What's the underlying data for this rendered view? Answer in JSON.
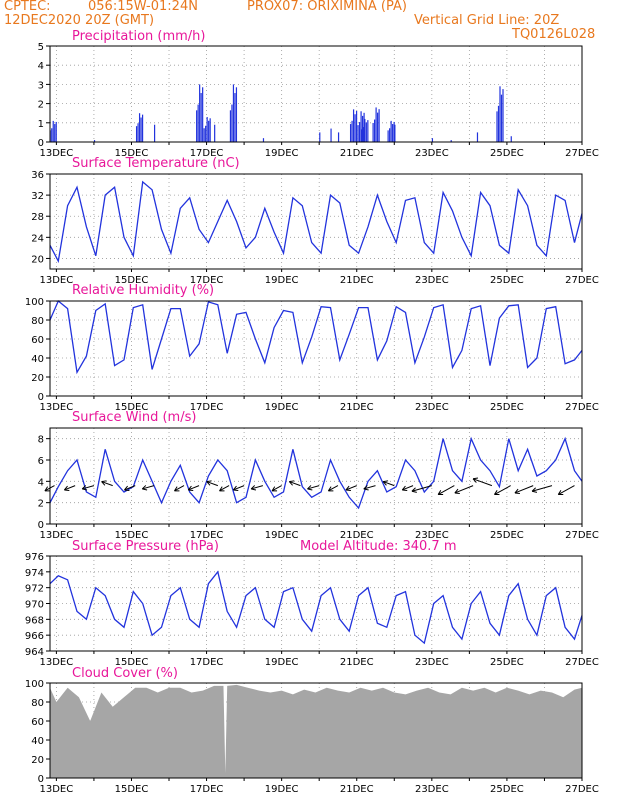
{
  "header": {
    "center": "CPTEC:",
    "coords": "056:15W-01:24N",
    "station": "PROX07: ORIXIMINA (PA)",
    "date": "12DEC2020 20Z (GMT)",
    "grid_note": "Vertical Grid Line: 20Z",
    "model": "TQ0126L028"
  },
  "colors": {
    "header": "#e8781e",
    "title": "#e8179a",
    "line": "#2233dd",
    "cloud": "#a6a6a6"
  },
  "x_ticks": [
    "13DEC",
    "15DEC",
    "17DEC",
    "19DEC",
    "21DEC",
    "23DEC",
    "25DEC",
    "27DEC"
  ],
  "chart_data": [
    {
      "type": "bar",
      "title": "Precipitation (mm/h)",
      "ylim": [
        0,
        5
      ],
      "yticks": [
        "0",
        "1",
        "2",
        "3",
        "4",
        "5"
      ],
      "x_range_days": [
        12.83,
        27.0
      ],
      "values_hourly_approx": "spikes: 12.9~1.1, 14.0~0.1, 15.2~1.5, 15.6~0.9, 16.8~3.0, 17.0~1.3, 17.2~0.9, 17.7~3.0, 18.5~0.2, 20.0~0.5, 20.3~0.7, 20.5~0.5, 20.9~1.7, 21.1~1.6, 21.2~1.2, 21.5~1.8, 21.9~1.1, 22.0~0.9, 23.0~0.2, 23.5~0.1, 24.2~0.5, 24.8~2.9, 25.1~0.3"
    },
    {
      "type": "line",
      "title": "Surface Temperature (nC)",
      "ylim": [
        18,
        36
      ],
      "yticks": [
        "20",
        "24",
        "28",
        "32",
        "36"
      ],
      "series": [
        {
          "name": "Temperature",
          "x": [
            12.83,
            13.05,
            13.3,
            13.55,
            13.8,
            14.05,
            14.3,
            14.55,
            14.8,
            15.05,
            15.3,
            15.55,
            15.8,
            16.05,
            16.3,
            16.55,
            16.8,
            17.05,
            17.3,
            17.55,
            17.8,
            18.05,
            18.3,
            18.55,
            18.8,
            19.05,
            19.3,
            19.55,
            19.8,
            20.05,
            20.3,
            20.55,
            20.8,
            21.05,
            21.3,
            21.55,
            21.8,
            22.05,
            22.3,
            22.55,
            22.8,
            23.05,
            23.3,
            23.55,
            23.8,
            24.05,
            24.3,
            24.55,
            24.8,
            25.05,
            25.3,
            25.55,
            25.8,
            26.05,
            26.3,
            26.55,
            26.8,
            27.0
          ],
          "y": [
            22.5,
            19.5,
            30,
            33.5,
            26,
            20.5,
            32,
            33.5,
            24,
            20.5,
            34.5,
            33,
            25.5,
            21,
            29.5,
            31.5,
            25.5,
            23,
            27,
            31,
            27,
            22,
            24,
            29.5,
            25,
            21,
            31.5,
            30,
            23,
            21,
            32,
            30.5,
            22.5,
            21,
            26,
            32,
            27,
            23,
            31,
            31.5,
            23,
            21,
            32.5,
            29,
            24,
            20.5,
            32.5,
            30,
            22.5,
            21,
            33,
            30,
            22.5,
            20.5,
            32,
            31,
            23,
            28.5
          ]
        }
      ]
    },
    {
      "type": "line",
      "title": "Relative Humidity (%)",
      "ylim": [
        0,
        100
      ],
      "yticks": [
        "0",
        "20",
        "40",
        "60",
        "80",
        "100"
      ],
      "series": [
        {
          "name": "Humidity",
          "x": [
            12.83,
            13.05,
            13.3,
            13.55,
            13.8,
            14.05,
            14.3,
            14.55,
            14.8,
            15.05,
            15.3,
            15.55,
            15.8,
            16.05,
            16.3,
            16.55,
            16.8,
            17.05,
            17.3,
            17.55,
            17.8,
            18.05,
            18.3,
            18.55,
            18.8,
            19.05,
            19.3,
            19.55,
            19.8,
            20.05,
            20.3,
            20.55,
            20.8,
            21.05,
            21.3,
            21.55,
            21.8,
            22.05,
            22.3,
            22.55,
            22.8,
            23.05,
            23.3,
            23.55,
            23.8,
            24.05,
            24.3,
            24.55,
            24.8,
            25.05,
            25.3,
            25.55,
            25.8,
            26.05,
            26.3,
            26.55,
            26.8,
            27.0
          ],
          "y": [
            80,
            100,
            92,
            25,
            42,
            90,
            97,
            32,
            38,
            93,
            96,
            28,
            60,
            92,
            92,
            42,
            55,
            99,
            96,
            45,
            86,
            88,
            60,
            35,
            72,
            90,
            88,
            35,
            62,
            94,
            93,
            38,
            65,
            93,
            93,
            38,
            58,
            94,
            88,
            35,
            62,
            93,
            96,
            30,
            48,
            92,
            95,
            32,
            82,
            95,
            96,
            30,
            40,
            92,
            94,
            34,
            38,
            48
          ]
        }
      ]
    },
    {
      "type": "line",
      "title": "Surface Wind (m/s)",
      "ylim": [
        0,
        9
      ],
      "yticks": [
        "0",
        "2",
        "4",
        "6",
        "8"
      ],
      "series": [
        {
          "name": "Wind speed",
          "x": [
            12.83,
            13.05,
            13.3,
            13.55,
            13.8,
            14.05,
            14.3,
            14.55,
            14.8,
            15.05,
            15.3,
            15.55,
            15.8,
            16.05,
            16.3,
            16.55,
            16.8,
            17.05,
            17.3,
            17.55,
            17.8,
            18.05,
            18.3,
            18.55,
            18.8,
            19.05,
            19.3,
            19.55,
            19.8,
            20.05,
            20.3,
            20.55,
            20.8,
            21.05,
            21.3,
            21.55,
            21.8,
            22.05,
            22.3,
            22.55,
            22.8,
            23.05,
            23.3,
            23.55,
            23.8,
            24.05,
            24.3,
            24.55,
            24.8,
            25.05,
            25.3,
            25.55,
            25.8,
            26.05,
            26.3,
            26.55,
            26.8,
            27.0
          ],
          "y": [
            2,
            3.5,
            5,
            6,
            3,
            2.5,
            7,
            4,
            3,
            3.5,
            6,
            4,
            2,
            4,
            5.5,
            3,
            2,
            4.5,
            6,
            5,
            2,
            2.5,
            6,
            4,
            2.5,
            3,
            7,
            3.5,
            2.5,
            3,
            6,
            4,
            2.5,
            1.5,
            4,
            5,
            3,
            3.5,
            6,
            5,
            3,
            4,
            8,
            5,
            4,
            8,
            6,
            5,
            3.5,
            8,
            5,
            7,
            4.5,
            5,
            6,
            8,
            5,
            4
          ]
        }
      ],
      "vectors_note": "wind direction arrows along ~3.5 m/s, mostly toward southwest"
    },
    {
      "type": "line",
      "title": "Surface Pressure (hPa)",
      "subtitle": "Model Altitude: 340.7 m",
      "ylim": [
        964,
        976
      ],
      "yticks": [
        "964",
        "966",
        "968",
        "970",
        "972",
        "974",
        "976"
      ],
      "series": [
        {
          "name": "Pressure",
          "x": [
            12.83,
            13.05,
            13.3,
            13.55,
            13.8,
            14.05,
            14.3,
            14.55,
            14.8,
            15.05,
            15.3,
            15.55,
            15.8,
            16.05,
            16.3,
            16.55,
            16.8,
            17.05,
            17.3,
            17.55,
            17.8,
            18.05,
            18.3,
            18.55,
            18.8,
            19.05,
            19.3,
            19.55,
            19.8,
            20.05,
            20.3,
            20.55,
            20.8,
            21.05,
            21.3,
            21.55,
            21.8,
            22.05,
            22.3,
            22.55,
            22.8,
            23.05,
            23.3,
            23.55,
            23.8,
            24.05,
            24.3,
            24.55,
            24.8,
            25.05,
            25.3,
            25.55,
            25.8,
            26.05,
            26.3,
            26.55,
            26.8,
            27.0
          ],
          "y": [
            972.5,
            973.5,
            973,
            969,
            968,
            972,
            971,
            968,
            967,
            971.5,
            970,
            966,
            967,
            971,
            972,
            968,
            967,
            972.5,
            974,
            969,
            967,
            971,
            972,
            968,
            967,
            971.5,
            972,
            968,
            966.5,
            971,
            972,
            968,
            966.5,
            971,
            972,
            967.5,
            967,
            971,
            971.5,
            966,
            965,
            970,
            971,
            967,
            965.5,
            970,
            971.5,
            967.5,
            966,
            971,
            972.5,
            968,
            966,
            971,
            972,
            967,
            965.5,
            968.5
          ]
        }
      ]
    },
    {
      "type": "area",
      "title": "Cloud Cover (%)",
      "ylim": [
        0,
        100
      ],
      "yticks": [
        "0",
        "20",
        "40",
        "60",
        "80",
        "100"
      ],
      "series": [
        {
          "name": "Cloud cover",
          "x": [
            12.83,
            13.0,
            13.3,
            13.6,
            13.9,
            14.2,
            14.5,
            14.8,
            15.1,
            15.4,
            15.7,
            16.0,
            16.3,
            16.6,
            16.9,
            17.2,
            17.45,
            17.5,
            17.55,
            17.8,
            18.1,
            18.4,
            18.7,
            19.0,
            19.3,
            19.6,
            19.9,
            20.2,
            20.5,
            20.8,
            21.1,
            21.4,
            21.7,
            22.0,
            22.3,
            22.6,
            22.9,
            23.2,
            23.5,
            23.8,
            24.1,
            24.4,
            24.7,
            25.0,
            25.3,
            25.6,
            25.9,
            26.2,
            26.5,
            26.8,
            27.0
          ],
          "y": [
            95,
            80,
            95,
            85,
            60,
            90,
            75,
            85,
            95,
            95,
            90,
            95,
            95,
            90,
            92,
            97,
            97,
            5,
            97,
            98,
            95,
            92,
            90,
            92,
            88,
            93,
            90,
            95,
            92,
            90,
            95,
            92,
            95,
            90,
            88,
            92,
            95,
            90,
            88,
            95,
            92,
            95,
            90,
            95,
            92,
            88,
            92,
            90,
            85,
            93,
            95
          ]
        }
      ]
    }
  ]
}
